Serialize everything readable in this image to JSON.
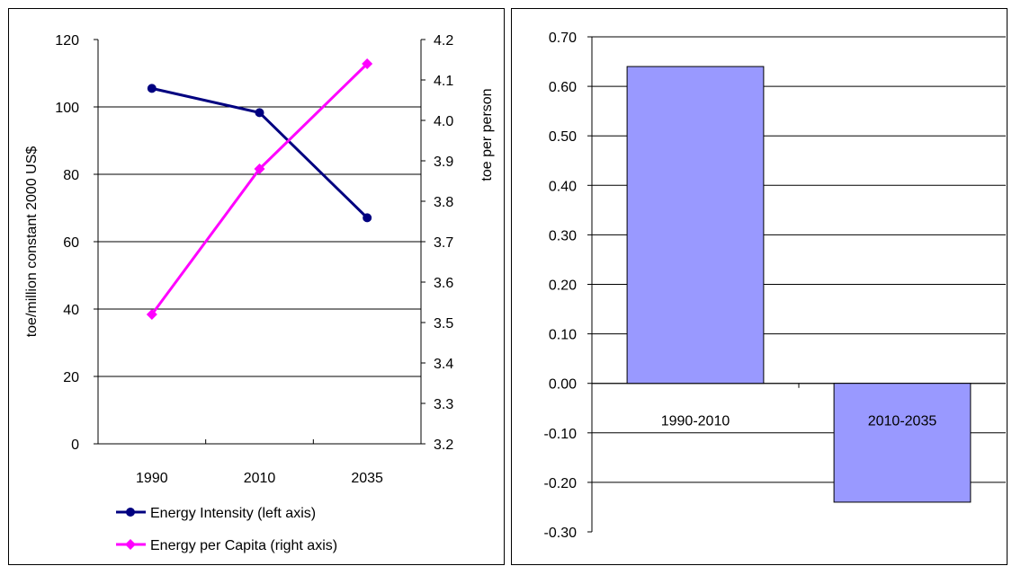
{
  "chart_data": [
    {
      "type": "line",
      "x": [
        "1990",
        "2010",
        "2035"
      ],
      "series": [
        {
          "name": "Energy Intensity (left axis)",
          "axis": "left",
          "values": [
            105.5,
            98.3,
            67.1
          ],
          "color": "#000080",
          "marker": "circle"
        },
        {
          "name": "Energy per Capita (right axis)",
          "axis": "right",
          "values": [
            3.52,
            3.88,
            4.14
          ],
          "color": "#ff00ff",
          "marker": "diamond"
        }
      ],
      "ylabel": "toe/million constant 2000 US$",
      "y2label": "toe per person",
      "ylim": [
        0,
        120
      ],
      "y2lim": [
        3.2,
        4.2
      ],
      "yticks": [
        "0",
        "20",
        "40",
        "60",
        "80",
        "100",
        "120"
      ],
      "y2ticks": [
        "3.2",
        "3.3",
        "3.4",
        "3.5",
        "3.6",
        "3.7",
        "3.8",
        "3.9",
        "4.0",
        "4.1",
        "4.2"
      ],
      "grid": true,
      "legend": "bottom"
    },
    {
      "type": "bar",
      "categories": [
        "1990-2010",
        "2010-2035"
      ],
      "values": [
        0.64,
        -0.24
      ],
      "color": "#9999ff",
      "ylim": [
        -0.3,
        0.7
      ],
      "yticks": [
        "-0.30",
        "-0.20",
        "-0.10",
        "0.00",
        "0.10",
        "0.20",
        "0.30",
        "0.40",
        "0.50",
        "0.60",
        "0.70"
      ],
      "grid": true
    }
  ]
}
